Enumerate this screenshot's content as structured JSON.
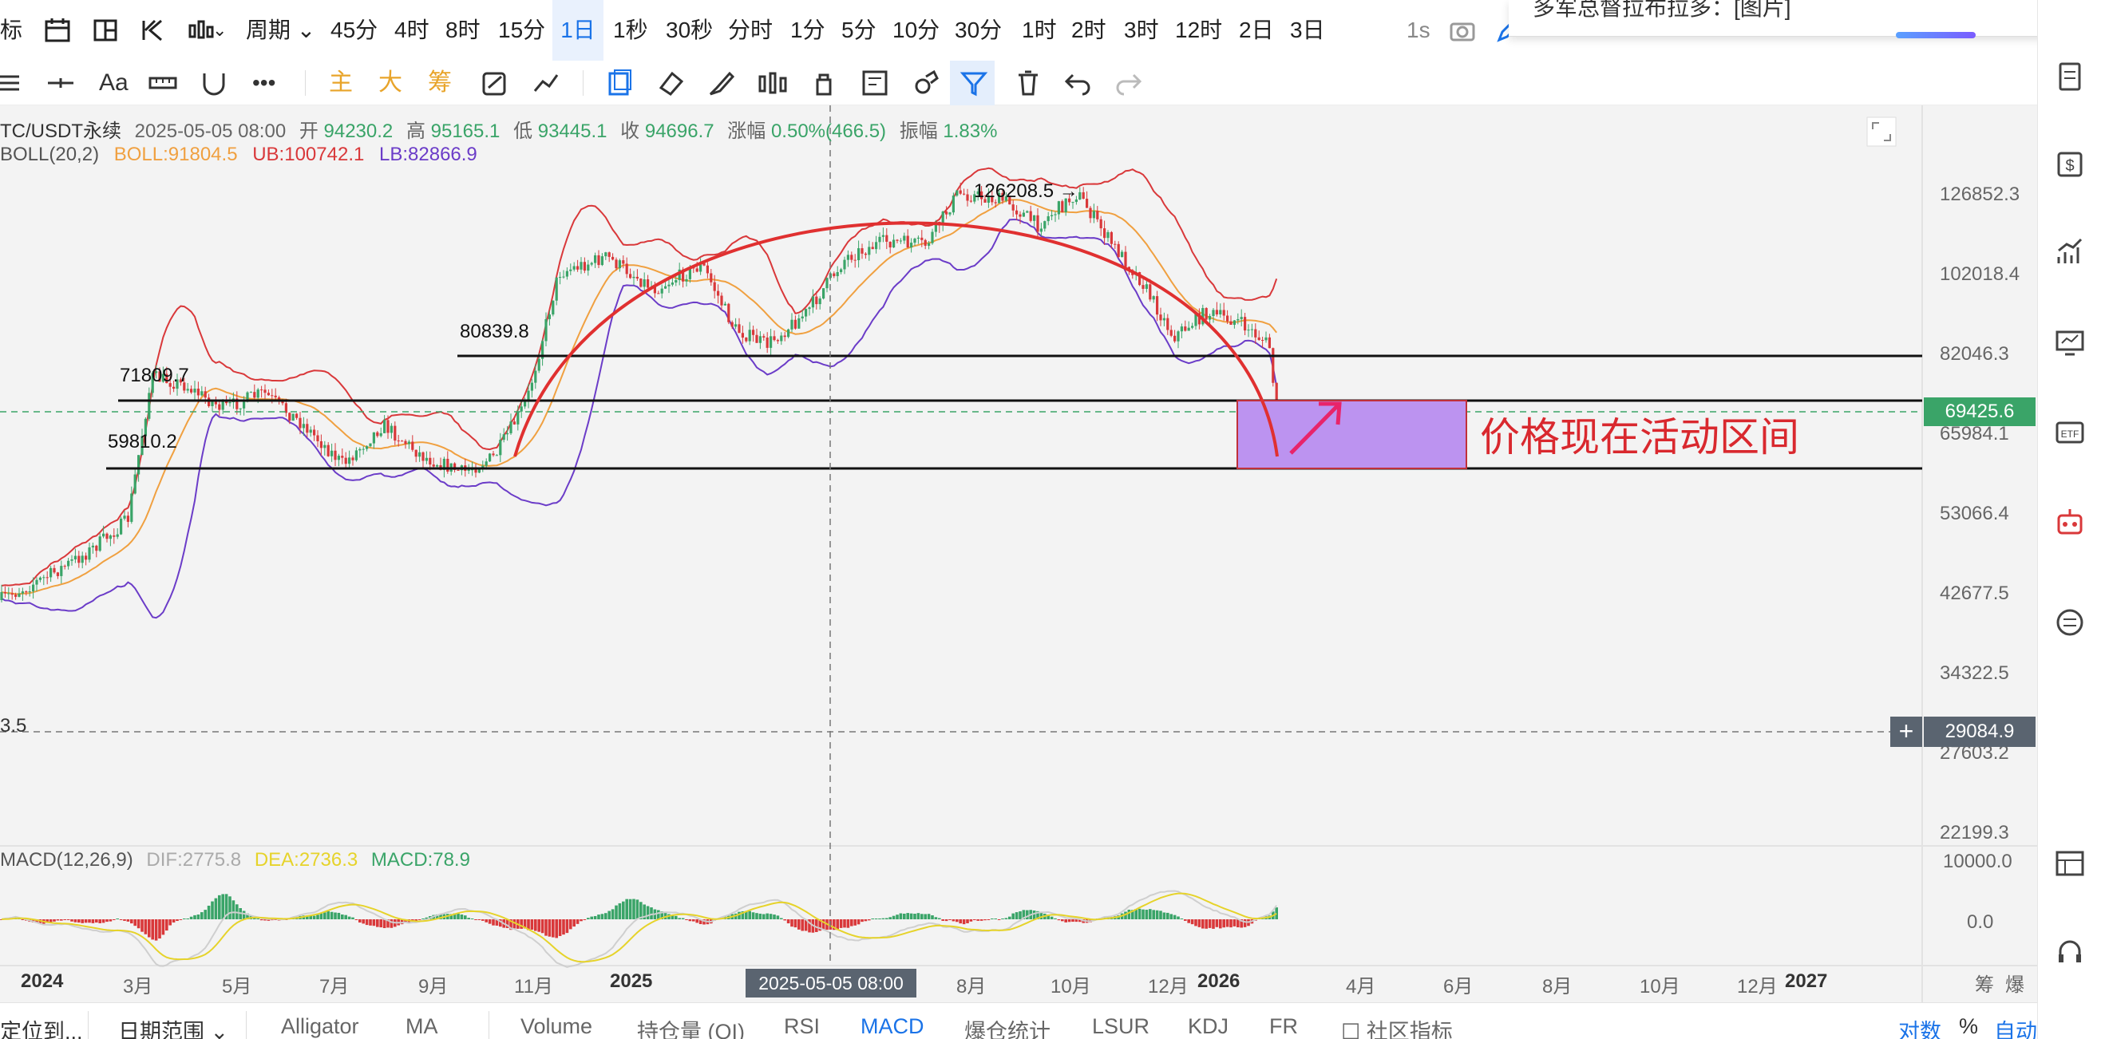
{
  "timeframes": {
    "left_label": "标",
    "period_dropdown": "周期",
    "items": [
      "45分",
      "4时",
      "8时",
      "15分",
      "1日",
      "1秒",
      "30秒",
      "分时",
      "1分",
      "5分",
      "10分",
      "30分",
      "1时",
      "2时",
      "3时",
      "12时",
      "2日",
      "3日"
    ],
    "active": "1日",
    "interval_label": "1s"
  },
  "popup": {
    "text": "多军总督拉布拉多：[图片]"
  },
  "toolbar": {
    "main": "主",
    "big": "大",
    "chip": "筹",
    "font": "Aa"
  },
  "chart": {
    "info": {
      "symbol": "TC/USDT永续",
      "datetime": "2025-05-05 08:00",
      "open_label": "开",
      "open": "94230.2",
      "high_label": "高",
      "high": "95165.1",
      "low_label": "低",
      "low": "93445.1",
      "close_label": "收",
      "close": "94696.7",
      "change_label": "涨幅",
      "change": "0.50%(466.5)",
      "amp_label": "振幅",
      "amp": "1.83%"
    },
    "boll": {
      "name": "BOLL(20,2)",
      "boll": "BOLL:91804.5",
      "ub": "UB:100742.1",
      "lb": "LB:82866.9"
    },
    "price_axis": [
      "126852.3",
      "102018.4",
      "82046.3",
      "65984.1",
      "53066.4",
      "42677.5",
      "34322.5",
      "27603.2",
      "22199.3"
    ],
    "current_price": "69425.6",
    "crosshair_price": "29084.9",
    "crosshair_left_label": "3.5",
    "crosshair_time": "2025-05-05 08:00",
    "annotations": {
      "peak": "126208.5",
      "level_80839": "80839.8",
      "level_71809": "71809.7",
      "level_59810": "59810.2",
      "zone_text": "价格现在活动区间"
    },
    "macd": {
      "name": "MACD(12,26,9)",
      "dif": "DIF:2775.8",
      "dea": "DEA:2736.3",
      "macd": "MACD:78.9",
      "axis": [
        "10000.0",
        "0.0"
      ]
    },
    "time_axis": [
      "2024",
      "3月",
      "5月",
      "7月",
      "9月",
      "11月",
      "2025",
      "8月",
      "10月",
      "12月",
      "2026",
      "4月",
      "6月",
      "8月",
      "10月",
      "12月",
      "2027"
    ],
    "time_axis_right": [
      "筹",
      "爆"
    ]
  },
  "bottombar": {
    "goto": "定位到...",
    "date_range": "日期范围",
    "indicators": [
      "Alligator",
      "MA",
      "Volume",
      "持仓量 (OI)",
      "RSI",
      "MACD",
      "爆仓统计",
      "LSUR",
      "KDJ",
      "FR",
      "社区指标"
    ],
    "active_indicator": "MACD",
    "log": "对数",
    "percent": "%",
    "auto": "自动"
  },
  "colors": {
    "up": "#3aa468",
    "down": "#d9383a",
    "boll_mid": "#f0a040",
    "boll_ub": "#d9383a",
    "boll_lb": "#6b3cc8",
    "accent": "#1a73e8",
    "zone": "#bc93f0",
    "arc": "#e03030"
  }
}
